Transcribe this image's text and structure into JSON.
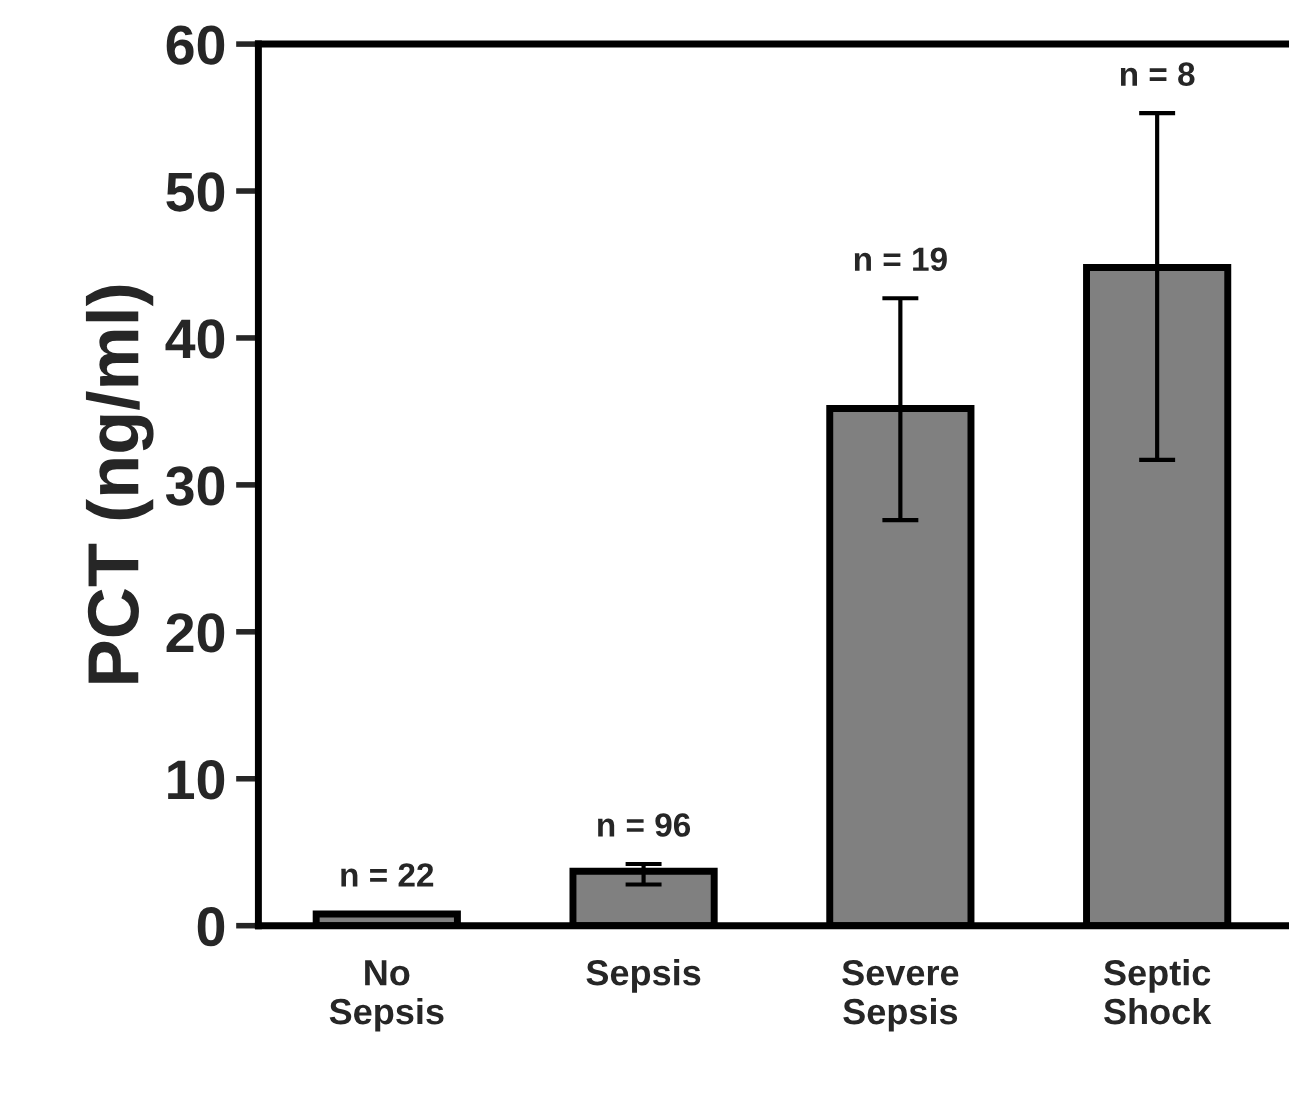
{
  "chart_data": {
    "type": "bar",
    "ylabel": "PCT (ng/ml)",
    "categories": [
      "No\nSepsis",
      "Sepsis",
      "Severe\nSepsis",
      "Septic\nShock"
    ],
    "values": [
      0.8,
      3.7,
      35.2,
      44.8
    ],
    "errors": [
      null,
      [
        2.8,
        4.2
      ],
      [
        27.6,
        42.7
      ],
      [
        31.7,
        55.3
      ]
    ],
    "color": "#808080",
    "ylim": [
      0,
      60
    ],
    "yticks": [
      0,
      10,
      20,
      30,
      40,
      50,
      60
    ],
    "grid": false,
    "annotations": [
      "n = 22",
      "n = 96",
      "n = 19",
      "n = 8"
    ]
  }
}
